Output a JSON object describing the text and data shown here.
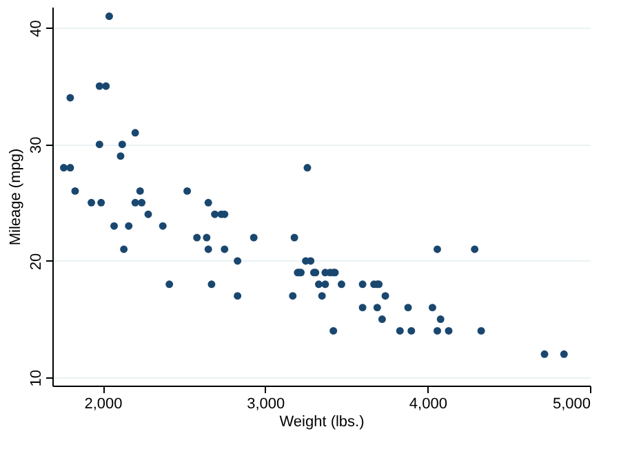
{
  "chart_data": {
    "type": "scatter",
    "xlabel": "Weight (lbs.)",
    "ylabel": "Mileage (mpg)",
    "x": [
      2930,
      3350,
      2640,
      3250,
      4080,
      3670,
      2230,
      3280,
      3880,
      3400,
      4330,
      3900,
      4290,
      2110,
      3690,
      3180,
      3220,
      2750,
      3430,
      2120,
      3600,
      3600,
      3740,
      1800,
      2650,
      4840,
      4720,
      3830,
      2580,
      4060,
      3720,
      3370,
      4130,
      2830,
      4060,
      3310,
      3300,
      3690,
      3370,
      2730,
      4030,
      3260,
      1800,
      2200,
      2520,
      3330,
      3700,
      3470,
      3210,
      3200,
      3420,
      2690,
      2830,
      2070,
      2650,
      2370,
      2020,
      2280,
      2750,
      2130,
      2240,
      1760,
      1980,
      3420,
      1830,
      1980,
      2410,
      2200,
      2670,
      2160,
      2040,
      1930,
      1990,
      3170
    ],
    "series": [
      {
        "color": "#1a476f",
        "values": [
          22,
          17,
          22,
          20,
          15,
          18,
          26,
          20,
          16,
          19,
          14,
          14,
          21,
          29,
          16,
          22,
          19,
          24,
          19,
          30,
          18,
          16,
          17,
          28,
          21,
          12,
          12,
          14,
          22,
          14,
          15,
          18,
          14,
          20,
          21,
          19,
          19,
          18,
          19,
          24,
          16,
          28,
          34,
          25,
          26,
          18,
          18,
          18,
          19,
          19,
          19,
          24,
          17,
          23,
          25,
          23,
          35,
          24,
          21,
          21,
          25,
          28,
          30,
          14,
          26,
          35,
          18,
          31,
          18,
          23,
          41,
          25,
          25,
          17
        ]
      }
    ],
    "xlim": [
      1690,
      5000
    ],
    "xticks": [
      {
        "value": 2000,
        "label": "2,000"
      },
      {
        "value": 3000,
        "label": "3,000"
      },
      {
        "value": 4000,
        "label": "4,000"
      },
      {
        "value": 5000,
        "label": "5,000"
      }
    ],
    "ylim": [
      9.3,
      41.8
    ],
    "yticks": [
      10,
      20,
      30,
      40
    ],
    "grid": "y",
    "marker": "circle"
  }
}
